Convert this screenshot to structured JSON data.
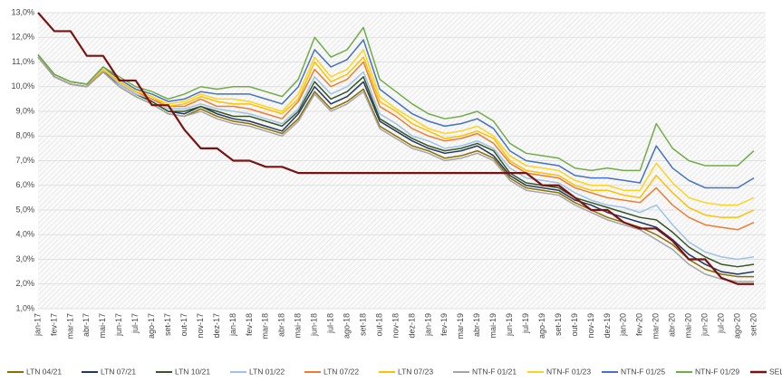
{
  "chart_data": {
    "type": "line",
    "categories": [
      "jan-17",
      "fev-17",
      "mar-17",
      "abr-17",
      "mai-17",
      "jun-17",
      "jul-17",
      "ago-17",
      "set-17",
      "out-17",
      "nov-17",
      "dez-17",
      "jan-18",
      "fev-18",
      "mar-18",
      "abr-18",
      "mai-18",
      "jun-18",
      "jul-18",
      "ago-18",
      "set-18",
      "out-18",
      "nov-18",
      "dez-18",
      "jan-19",
      "fev-19",
      "mar-19",
      "abr-19",
      "mai-19",
      "jun-19",
      "jul-19",
      "ago-19",
      "set-19",
      "out-19",
      "nov-19",
      "dez-19",
      "jan-20",
      "fev-20",
      "mar-20",
      "abr-20",
      "mai-20",
      "jun-20",
      "jul-20",
      "ago-20",
      "set-20"
    ],
    "ylim": [
      1,
      13
    ],
    "yticks": [
      {
        "value": 1,
        "label": "1,0%"
      },
      {
        "value": 2,
        "label": "2,0%"
      },
      {
        "value": 3,
        "label": "3,0%"
      },
      {
        "value": 4,
        "label": "4,0%"
      },
      {
        "value": 5,
        "label": "5,0%"
      },
      {
        "value": 6,
        "label": "6,0%"
      },
      {
        "value": 7,
        "label": "7,0%"
      },
      {
        "value": 8,
        "label": "8,0%"
      },
      {
        "value": 9,
        "label": "9,0%"
      },
      {
        "value": 10,
        "label": "10,0%"
      },
      {
        "value": 11,
        "label": "11,0%"
      },
      {
        "value": 12,
        "label": "12,0%"
      },
      {
        "value": 13,
        "label": "13,0%"
      }
    ],
    "grid": true,
    "legend": "bottom",
    "series": [
      {
        "name": "LTN 04/21",
        "color": "#8c6d00",
        "values": [
          11.2,
          10.4,
          10.1,
          10.0,
          10.6,
          10.0,
          9.6,
          9.3,
          8.9,
          8.8,
          9.1,
          8.8,
          8.6,
          8.5,
          8.3,
          8.1,
          8.7,
          9.8,
          9.1,
          9.4,
          9.9,
          8.4,
          8.0,
          7.6,
          7.4,
          7.1,
          7.2,
          7.4,
          7.1,
          6.3,
          5.9,
          5.8,
          5.7,
          5.3,
          5.0,
          4.7,
          4.5,
          4.3,
          4.0,
          3.6,
          3.0,
          2.6,
          2.4,
          2.3,
          2.3
        ]
      },
      {
        "name": "LTN 07/21",
        "color": "#1f3864",
        "values": [
          11.2,
          10.4,
          10.1,
          10.0,
          10.6,
          10.1,
          9.7,
          9.4,
          9.0,
          8.9,
          9.2,
          8.9,
          8.7,
          8.6,
          8.4,
          8.2,
          8.9,
          10.0,
          9.3,
          9.6,
          10.2,
          8.6,
          8.2,
          7.8,
          7.5,
          7.3,
          7.4,
          7.6,
          7.2,
          6.4,
          6.0,
          5.9,
          5.8,
          5.4,
          5.2,
          4.9,
          4.7,
          4.5,
          4.3,
          3.8,
          3.2,
          2.8,
          2.5,
          2.4,
          2.5
        ]
      },
      {
        "name": "LTN 10/21",
        "color": "#375623",
        "values": [
          11.2,
          10.4,
          10.1,
          10.0,
          10.6,
          10.1,
          9.7,
          9.4,
          9.0,
          9.0,
          9.2,
          9.0,
          8.8,
          8.8,
          8.6,
          8.4,
          9.0,
          10.2,
          9.5,
          9.8,
          10.4,
          8.7,
          8.3,
          7.9,
          7.6,
          7.4,
          7.5,
          7.7,
          7.4,
          6.5,
          6.1,
          6.0,
          5.9,
          5.5,
          5.3,
          5.1,
          4.9,
          4.7,
          4.6,
          4.1,
          3.5,
          3.1,
          2.8,
          2.7,
          2.8
        ]
      },
      {
        "name": "LTN 01/22",
        "color": "#9dc3e6",
        "values": [
          11.2,
          10.4,
          10.1,
          10.0,
          10.7,
          10.1,
          9.7,
          9.5,
          9.1,
          9.1,
          9.3,
          9.1,
          9.0,
          8.9,
          8.7,
          8.5,
          9.1,
          10.4,
          9.7,
          10.0,
          10.6,
          8.9,
          8.5,
          8.0,
          7.8,
          7.5,
          7.6,
          7.8,
          7.5,
          6.7,
          6.3,
          6.2,
          6.1,
          5.7,
          5.4,
          5.2,
          5.1,
          4.9,
          5.2,
          4.4,
          3.7,
          3.3,
          3.1,
          3.0,
          3.1
        ]
      },
      {
        "name": "LTN 07/22",
        "color": "#ed7d31",
        "values": [
          11.2,
          10.4,
          10.1,
          10.0,
          10.7,
          10.2,
          9.8,
          9.5,
          9.2,
          9.2,
          9.5,
          9.2,
          9.2,
          9.1,
          8.9,
          8.7,
          9.4,
          10.7,
          10.0,
          10.3,
          11.0,
          9.2,
          8.8,
          8.3,
          8.0,
          7.8,
          7.9,
          8.1,
          7.7,
          6.9,
          6.5,
          6.4,
          6.3,
          5.9,
          5.7,
          5.5,
          5.4,
          5.3,
          5.9,
          5.2,
          4.7,
          4.4,
          4.3,
          4.2,
          4.5
        ]
      },
      {
        "name": "LTN 07/23",
        "color": "#ffc000",
        "values": [
          11.3,
          10.5,
          10.2,
          10.1,
          10.7,
          10.2,
          9.8,
          9.6,
          9.2,
          9.3,
          9.6,
          9.4,
          9.3,
          9.3,
          9.1,
          8.9,
          9.5,
          11.0,
          10.2,
          10.5,
          11.2,
          9.4,
          9.0,
          8.5,
          8.2,
          7.9,
          8.0,
          8.2,
          7.9,
          7.0,
          6.6,
          6.5,
          6.4,
          6.0,
          5.8,
          5.8,
          5.6,
          5.5,
          6.4,
          5.7,
          5.1,
          4.8,
          4.7,
          4.7,
          5.0
        ]
      },
      {
        "name": "NTN-F 01/21",
        "color": "#a5a5a5",
        "values": [
          11.2,
          10.4,
          10.1,
          10.0,
          10.6,
          10.0,
          9.6,
          9.3,
          8.9,
          8.8,
          9.0,
          8.7,
          8.5,
          8.4,
          8.2,
          8.0,
          8.6,
          9.7,
          9.0,
          9.3,
          9.8,
          8.3,
          7.9,
          7.5,
          7.3,
          7.0,
          7.1,
          7.3,
          7.0,
          6.2,
          5.8,
          5.7,
          5.6,
          5.2,
          4.9,
          4.6,
          4.4,
          4.2,
          3.8,
          3.4,
          2.8,
          2.4,
          2.2,
          2.1,
          2.1
        ]
      },
      {
        "name": "NTN-F 01/23",
        "color": "#ffd320",
        "values": [
          11.3,
          10.5,
          10.2,
          10.1,
          10.7,
          10.3,
          9.9,
          9.6,
          9.3,
          9.4,
          9.7,
          9.5,
          9.5,
          9.4,
          9.2,
          9.0,
          9.7,
          11.2,
          10.4,
          10.7,
          11.5,
          9.6,
          9.1,
          8.7,
          8.3,
          8.1,
          8.2,
          8.4,
          8.0,
          7.2,
          6.8,
          6.7,
          6.6,
          6.2,
          6.0,
          6.0,
          5.8,
          5.8,
          6.9,
          6.1,
          5.5,
          5.3,
          5.2,
          5.2,
          5.5
        ]
      },
      {
        "name": "NTN-F 01/25",
        "color": "#4472c4",
        "values": [
          11.3,
          10.5,
          10.2,
          10.1,
          10.8,
          10.3,
          9.9,
          9.7,
          9.4,
          9.5,
          9.8,
          9.7,
          9.7,
          9.7,
          9.5,
          9.3,
          10.0,
          11.5,
          10.8,
          11.1,
          11.9,
          9.9,
          9.4,
          8.9,
          8.6,
          8.4,
          8.5,
          8.7,
          8.3,
          7.4,
          7.0,
          6.9,
          6.8,
          6.4,
          6.3,
          6.3,
          6.2,
          6.1,
          7.6,
          6.7,
          6.2,
          5.9,
          5.9,
          5.9,
          6.3
        ]
      },
      {
        "name": "NTN-F 01/29",
        "color": "#70ad47",
        "values": [
          11.3,
          10.5,
          10.2,
          10.1,
          10.8,
          10.4,
          10.0,
          9.8,
          9.5,
          9.7,
          10.0,
          9.9,
          10.0,
          10.0,
          9.8,
          9.6,
          10.3,
          12.0,
          11.2,
          11.5,
          12.4,
          10.3,
          9.8,
          9.3,
          8.9,
          8.7,
          8.8,
          9.0,
          8.6,
          7.7,
          7.3,
          7.2,
          7.1,
          6.7,
          6.6,
          6.7,
          6.6,
          6.6,
          8.5,
          7.5,
          7.0,
          6.8,
          6.8,
          6.8,
          7.4
        ]
      },
      {
        "name": "SELIC",
        "color": "#7b1212",
        "values": [
          13.0,
          12.25,
          12.25,
          11.25,
          11.25,
          10.25,
          10.25,
          9.25,
          9.25,
          8.25,
          7.5,
          7.5,
          7.0,
          7.0,
          6.75,
          6.75,
          6.5,
          6.5,
          6.5,
          6.5,
          6.5,
          6.5,
          6.5,
          6.5,
          6.5,
          6.5,
          6.5,
          6.5,
          6.5,
          6.5,
          6.5,
          6.0,
          6.0,
          5.5,
          5.0,
          5.0,
          4.5,
          4.25,
          4.25,
          3.75,
          3.0,
          3.0,
          2.25,
          2.0,
          2.0
        ]
      }
    ]
  }
}
